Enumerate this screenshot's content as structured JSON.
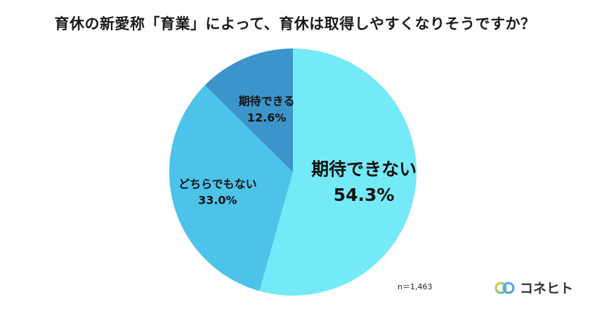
{
  "title": "育休の新愛称「育業」によって、育休は取得しやすくなりそうですか？",
  "sample_size": "n＝1,463",
  "brand": {
    "name": "コネヒト",
    "logo_icon": "coneheito-logo-icon"
  },
  "chart_data": {
    "type": "pie",
    "title": "育休の新愛称「育業」によって、育休は取得しやすくなりそうですか？",
    "start": "12 o'clock, clockwise",
    "slices": [
      {
        "label": "期待できない",
        "value": 54.3,
        "value_label": "54.3%",
        "color": "#75eaf7"
      },
      {
        "label": "どちらでもない",
        "value": 33.0,
        "value_label": "33.0%",
        "color": "#4dc3ea"
      },
      {
        "label": "期待できる",
        "value": 12.6,
        "value_label": "12.6%",
        "color": "#3b95cb"
      }
    ]
  }
}
